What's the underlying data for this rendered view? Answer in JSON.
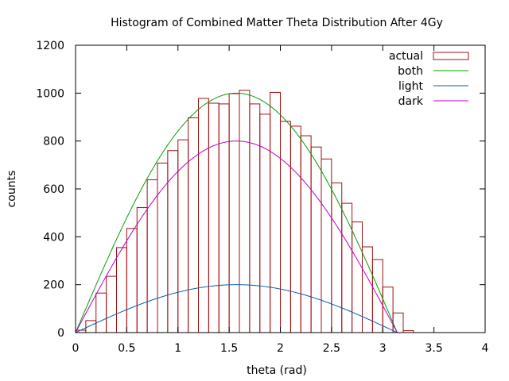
{
  "chart_data": {
    "type": "histogram",
    "title": "Histogram of Combined Matter Theta Distribution After 4Gy",
    "xlabel": "theta (rad)",
    "ylabel": "counts",
    "xlim": [
      0,
      4
    ],
    "ylim": [
      0,
      1200
    ],
    "xticks": [
      "0",
      "0.5",
      "1",
      "1.5",
      "2",
      "2.5",
      "3",
      "3.5",
      "4"
    ],
    "yticks": [
      "0",
      "200",
      "400",
      "600",
      "800",
      "1000",
      "1200"
    ],
    "xtick_values": [
      0,
      0.5,
      1,
      1.5,
      2,
      2.5,
      3,
      3.5,
      4
    ],
    "ytick_values": [
      0,
      200,
      400,
      600,
      800,
      1000,
      1200
    ],
    "grid": false,
    "legend_position": "top-right",
    "bin_width": 0.1,
    "bins": [
      {
        "x0": 0.0,
        "count": 10
      },
      {
        "x0": 0.1,
        "count": 50
      },
      {
        "x0": 0.2,
        "count": 165
      },
      {
        "x0": 0.3,
        "count": 235
      },
      {
        "x0": 0.4,
        "count": 355
      },
      {
        "x0": 0.5,
        "count": 435
      },
      {
        "x0": 0.6,
        "count": 522
      },
      {
        "x0": 0.7,
        "count": 638
      },
      {
        "x0": 0.8,
        "count": 708
      },
      {
        "x0": 0.9,
        "count": 760
      },
      {
        "x0": 1.0,
        "count": 805
      },
      {
        "x0": 1.1,
        "count": 897
      },
      {
        "x0": 1.2,
        "count": 978
      },
      {
        "x0": 1.3,
        "count": 958
      },
      {
        "x0": 1.4,
        "count": 955
      },
      {
        "x0": 1.5,
        "count": 998
      },
      {
        "x0": 1.6,
        "count": 1012
      },
      {
        "x0": 1.7,
        "count": 955
      },
      {
        "x0": 1.8,
        "count": 912
      },
      {
        "x0": 1.9,
        "count": 1003
      },
      {
        "x0": 2.0,
        "count": 882
      },
      {
        "x0": 2.1,
        "count": 862
      },
      {
        "x0": 2.2,
        "count": 822
      },
      {
        "x0": 2.3,
        "count": 775
      },
      {
        "x0": 2.4,
        "count": 725
      },
      {
        "x0": 2.5,
        "count": 625
      },
      {
        "x0": 2.6,
        "count": 540
      },
      {
        "x0": 2.7,
        "count": 462
      },
      {
        "x0": 2.8,
        "count": 358
      },
      {
        "x0": 2.9,
        "count": 305
      },
      {
        "x0": 3.0,
        "count": 190
      },
      {
        "x0": 3.1,
        "count": 82
      },
      {
        "x0": 3.2,
        "count": 8
      }
    ],
    "series": [
      {
        "name": "actual",
        "kind": "histogram",
        "color": "#a01010"
      },
      {
        "name": "both",
        "kind": "line",
        "color": "#00a000",
        "amplitude": 1000,
        "function": "amplitude*sin(theta)",
        "domain": [
          0,
          3.14159
        ]
      },
      {
        "name": "light",
        "kind": "line",
        "color": "#0060ad",
        "amplitude": 200,
        "function": "amplitude*sin(theta)",
        "domain": [
          0,
          3.14159
        ]
      },
      {
        "name": "dark",
        "kind": "line",
        "color": "#c000c0",
        "amplitude": 800,
        "function": "amplitude*sin(theta)",
        "domain": [
          0,
          3.14159
        ]
      }
    ]
  }
}
